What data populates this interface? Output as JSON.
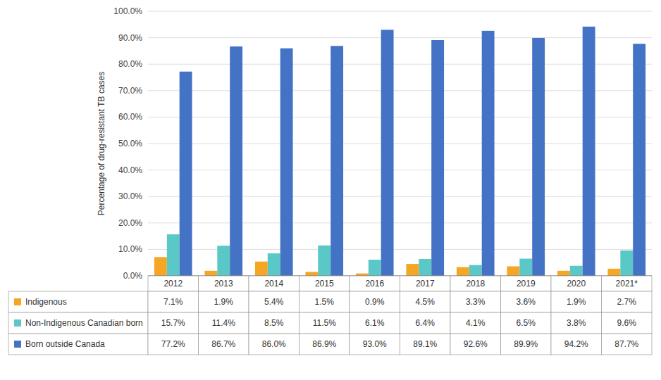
{
  "chart_data": {
    "type": "bar",
    "y_label": "Percentage of drug-resistant TB cases",
    "categories": [
      "2012",
      "2013",
      "2014",
      "2015",
      "2016",
      "2017",
      "2018",
      "2019",
      "2020",
      "2021*"
    ],
    "series": [
      {
        "name": "Indigenous",
        "color": "#F5A623",
        "values": [
          7.1,
          1.9,
          5.4,
          1.5,
          0.9,
          4.5,
          3.3,
          3.6,
          1.9,
          2.7
        ],
        "value_labels": [
          "7.1%",
          "1.9%",
          "5.4%",
          "1.5%",
          "0.9%",
          "4.5%",
          "3.3%",
          "3.6%",
          "1.9%",
          "2.7%"
        ]
      },
      {
        "name": "Non-Indigenous Canadian born",
        "color": "#5BC8C8",
        "values": [
          15.7,
          11.4,
          8.5,
          11.5,
          6.1,
          6.4,
          4.1,
          6.5,
          3.8,
          9.6
        ],
        "value_labels": [
          "15.7%",
          "11.4%",
          "8.5%",
          "11.5%",
          "6.1%",
          "6.4%",
          "4.1%",
          "6.5%",
          "3.8%",
          "9.6%"
        ]
      },
      {
        "name": "Born outside Canada",
        "color": "#4472C4",
        "values": [
          77.2,
          86.7,
          86.0,
          86.9,
          93.0,
          89.1,
          92.6,
          89.9,
          94.2,
          87.7
        ],
        "value_labels": [
          "77.2%",
          "86.7%",
          "86.0%",
          "86.9%",
          "93.0%",
          "89.1%",
          "92.6%",
          "89.9%",
          "94.2%",
          "87.7%"
        ]
      }
    ],
    "ylim": [
      0,
      100
    ],
    "yticks": [
      {
        "value": 0,
        "label": "0.0%"
      },
      {
        "value": 10,
        "label": "10.0%"
      },
      {
        "value": 20,
        "label": "20.0%"
      },
      {
        "value": 30,
        "label": "30.0%"
      },
      {
        "value": 40,
        "label": "40.0%"
      },
      {
        "value": 50,
        "label": "50.0%"
      },
      {
        "value": 60,
        "label": "60.0%"
      },
      {
        "value": 70,
        "label": "70.0%"
      },
      {
        "value": 80,
        "label": "80.0%"
      },
      {
        "value": 90,
        "label": "90.0%"
      },
      {
        "value": 100,
        "label": "100.0%"
      }
    ],
    "grid": true
  }
}
